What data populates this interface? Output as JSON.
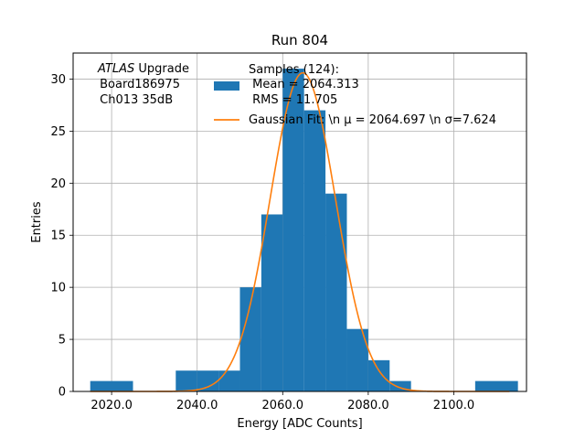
{
  "chart_data": {
    "type": "bar",
    "title": "Run 804",
    "xlabel": "Energy [ADC Counts]",
    "ylabel": "Entries",
    "xlim": [
      2011,
      2117
    ],
    "ylim": [
      0,
      32.5
    ],
    "x_ticks": [
      2020,
      2040,
      2060,
      2080,
      2100
    ],
    "x_tick_labels": [
      "2020.0",
      "2040.0",
      "2060.0",
      "2080.0",
      "2100.0"
    ],
    "y_ticks": [
      0,
      5,
      10,
      15,
      20,
      25,
      30
    ],
    "y_tick_labels": [
      "0",
      "5",
      "10",
      "15",
      "20",
      "25",
      "30"
    ],
    "grid": true,
    "histogram": {
      "color": "#1f77b4",
      "bin_edges": [
        2015,
        2025,
        2035,
        2040,
        2045,
        2050,
        2055,
        2060,
        2065,
        2070,
        2075,
        2080,
        2085,
        2090,
        2105,
        2115
      ],
      "counts": [
        1,
        0,
        2,
        2,
        2,
        10,
        17,
        31,
        27,
        19,
        6,
        3,
        1,
        0,
        1
      ]
    },
    "gaussian_fit": {
      "color": "#ff7f0e",
      "mu": 2064.697,
      "sigma": 7.624,
      "amplitude": 30.6,
      "x_range": [
        2015,
        2113
      ]
    },
    "legend": {
      "placement": "top-right",
      "entries": [
        {
          "label_lines": [
            "Samples (124):",
            " Mean = 2064.313",
            " RMS = 11.705"
          ],
          "kind": "patch",
          "color": "#1f77b4"
        },
        {
          "label_lines": [
            "Gaussian Fit: \\n μ = 2064.697 \\n σ=7.624"
          ],
          "kind": "line",
          "color": "#ff7f0e"
        }
      ]
    },
    "annotation": {
      "italic_part": "ATLAS",
      "line1_rest": " Upgrade",
      "line2": " Board186975",
      "line3": " Ch013 35dB"
    }
  }
}
